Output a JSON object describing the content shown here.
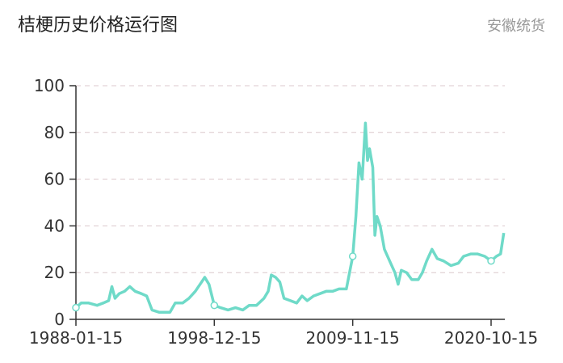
{
  "chart_data": {
    "type": "line",
    "title": "桔梗历史价格运行图",
    "subtitle": "安徽统货",
    "x": [
      "1988-01-15",
      "1988-06-15",
      "1989-01-15",
      "1989-09-15",
      "1990-03-15",
      "1990-08-15",
      "1990-11-15",
      "1991-02-15",
      "1991-06-15",
      "1991-11-15",
      "1992-04-15",
      "1992-09-15",
      "1993-03-15",
      "1993-08-15",
      "1994-01-15",
      "1994-08-15",
      "1995-06-15",
      "1995-11-15",
      "1996-06-15",
      "1996-12-15",
      "1997-06-15",
      "1997-12-15",
      "1998-03-15",
      "1998-07-15",
      "1998-12-15",
      "1999-06-15",
      "2000-01-15",
      "2000-08-15",
      "2001-03-15",
      "2001-09-15",
      "2002-04-15",
      "2002-11-15",
      "2003-03-15",
      "2003-06-15",
      "2003-10-15",
      "2004-02-15",
      "2004-06-15",
      "2004-12-15",
      "2005-06-15",
      "2005-11-15",
      "2006-04-15",
      "2006-10-15",
      "2007-04-15",
      "2007-10-15",
      "2008-04-15",
      "2008-10-15",
      "2009-05-15",
      "2009-11-15",
      "2010-02-15",
      "2010-05-15",
      "2010-08-15",
      "2010-11-15",
      "2011-01-15",
      "2011-03-15",
      "2011-06-15",
      "2011-08-15",
      "2011-10-15",
      "2012-01-15",
      "2012-05-15",
      "2012-10-15",
      "2013-03-15",
      "2013-06-15",
      "2013-09-15",
      "2014-02-15",
      "2014-07-15",
      "2015-01-15",
      "2015-05-15",
      "2015-09-15",
      "2016-02-15",
      "2016-07-15",
      "2017-01-15",
      "2017-08-15",
      "2018-03-15",
      "2018-08-15",
      "2019-03-15",
      "2019-09-15",
      "2020-04-15",
      "2020-10-15",
      "2021-03-15",
      "2021-07-15",
      "2021-10-15"
    ],
    "series": [
      {
        "color": "#6fdac8",
        "values": [
          5,
          7,
          7,
          6,
          7,
          8,
          14,
          9,
          11,
          12,
          14,
          12,
          11,
          10,
          4,
          3,
          3,
          7,
          7,
          9,
          12,
          16,
          18,
          15,
          6,
          5,
          4,
          5,
          4,
          6,
          6,
          9,
          12,
          19,
          18,
          16,
          9,
          8,
          7,
          10,
          8,
          10,
          11,
          12,
          12,
          13,
          13,
          27,
          44,
          67,
          60,
          84,
          68,
          73,
          65,
          36,
          44,
          40,
          30,
          25,
          20,
          15,
          21,
          20,
          17,
          17,
          20,
          25,
          30,
          26,
          25,
          23,
          24,
          27,
          28,
          28,
          27,
          25,
          27,
          28,
          37
        ]
      }
    ],
    "xlim": [
      "1988-01-15",
      "2021-11-15"
    ],
    "xticks": [
      "1988-01-15",
      "1998-12-15",
      "2009-11-15",
      "2020-10-15"
    ],
    "ylim": [
      0,
      100
    ],
    "yticks": [
      0,
      20,
      40,
      60,
      80,
      100
    ],
    "grid": true
  }
}
